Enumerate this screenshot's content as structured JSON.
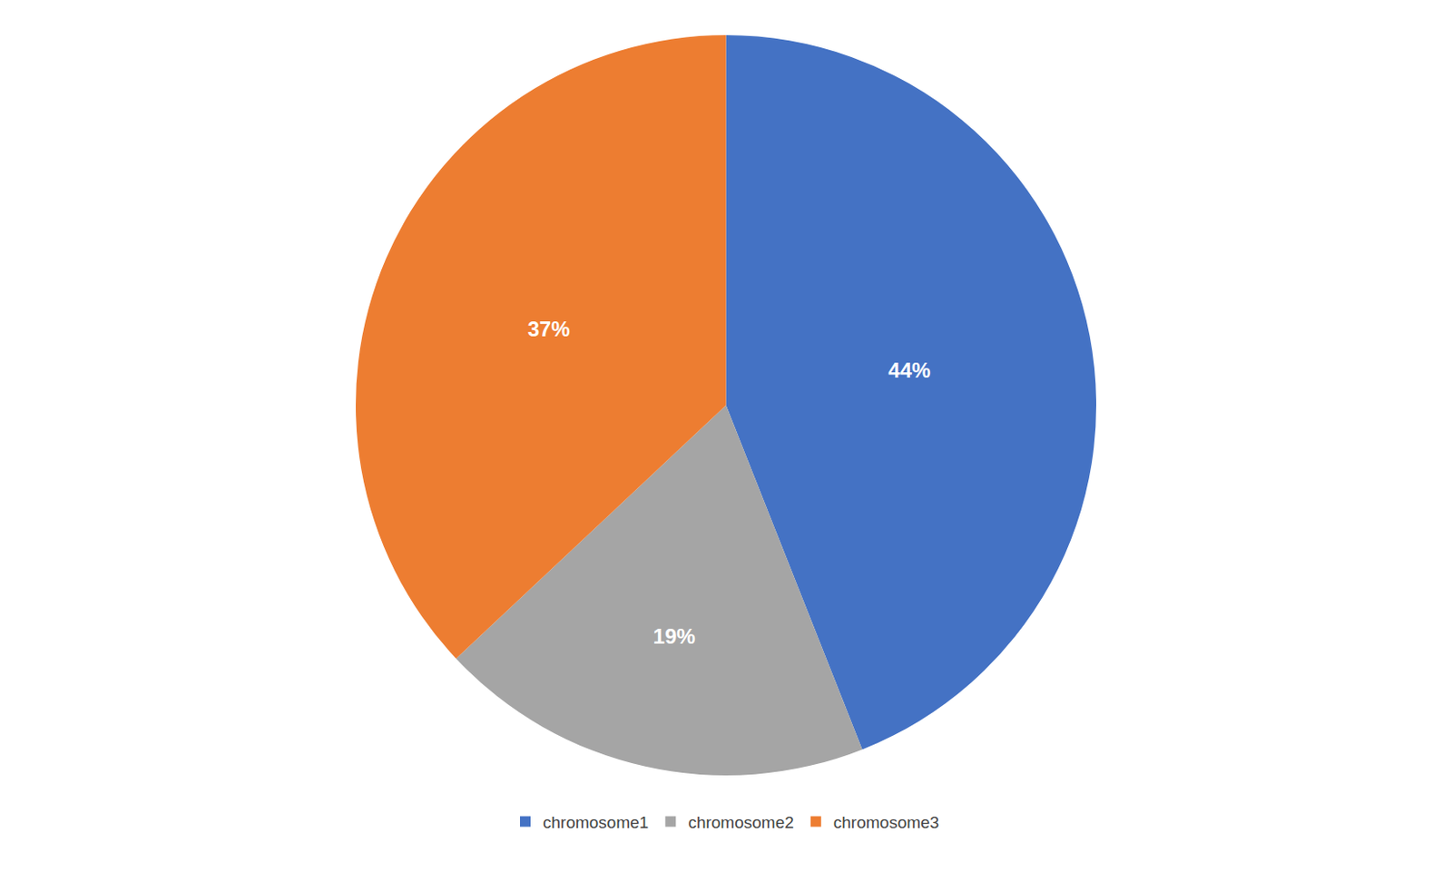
{
  "chart_data": {
    "type": "pie",
    "categories": [
      "chromosome1",
      "chromosome2",
      "chromosome3"
    ],
    "values": [
      44,
      19,
      37
    ],
    "value_labels": [
      "44%",
      "19%",
      "37%"
    ],
    "colors": [
      "#4472C4",
      "#A5A5A5",
      "#ED7D31"
    ],
    "data_labels": true,
    "legend": "bottom"
  }
}
